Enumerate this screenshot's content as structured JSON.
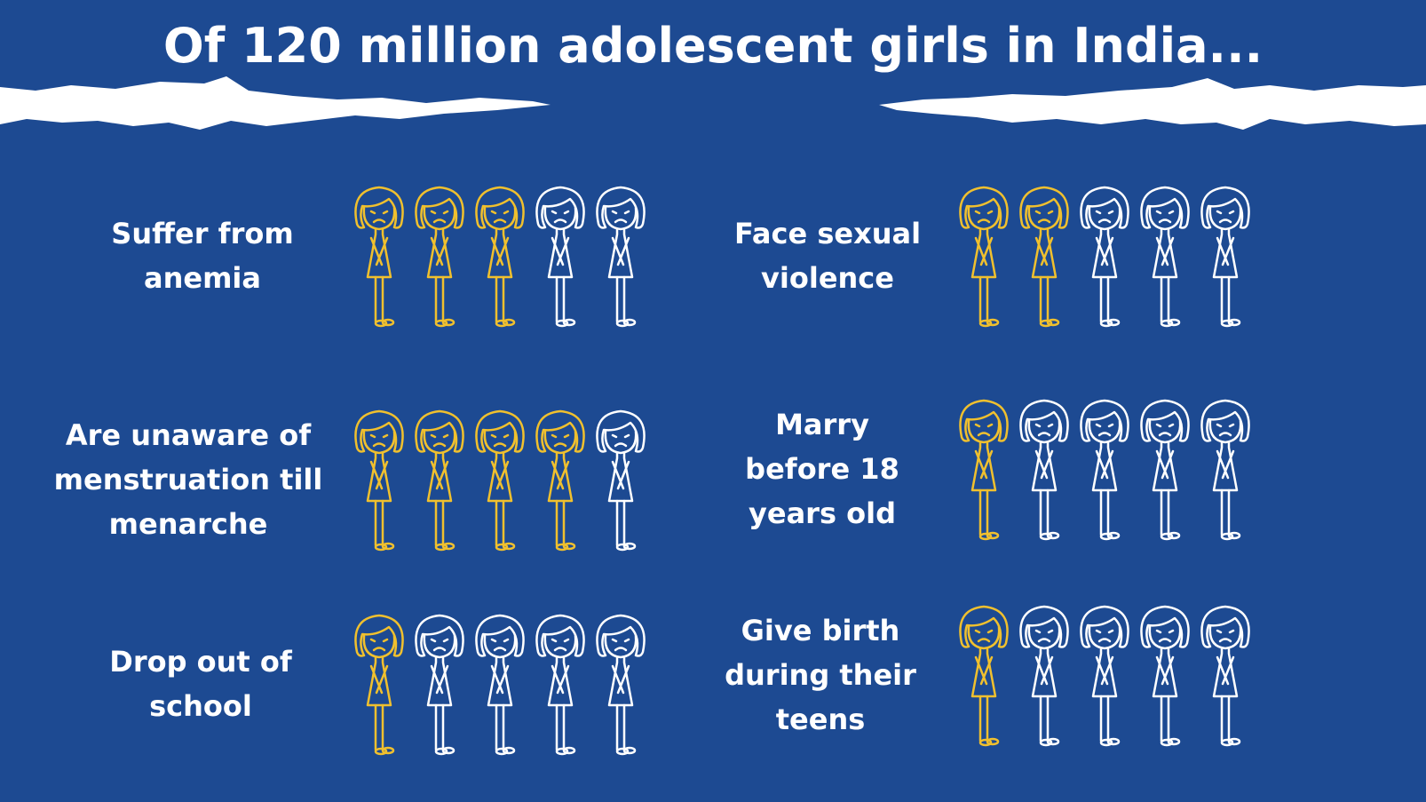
{
  "title": "Of 120 million adolescent girls in India...",
  "figures_per_row": 5,
  "highlight_color": "#f0c02e",
  "base_color": "#ffffff",
  "items": [
    {
      "label": "Suffer from anemia",
      "highlighted": 3
    },
    {
      "label": "Face sexual violence",
      "highlighted": 2
    },
    {
      "label": "Are unaware of menstruation till menarche",
      "highlighted": 4
    },
    {
      "label": "Marry before 18 years old",
      "highlighted": 1
    },
    {
      "label": "Drop out of school",
      "highlighted": 1
    },
    {
      "label": "Give birth during their teens",
      "highlighted": 1
    }
  ]
}
